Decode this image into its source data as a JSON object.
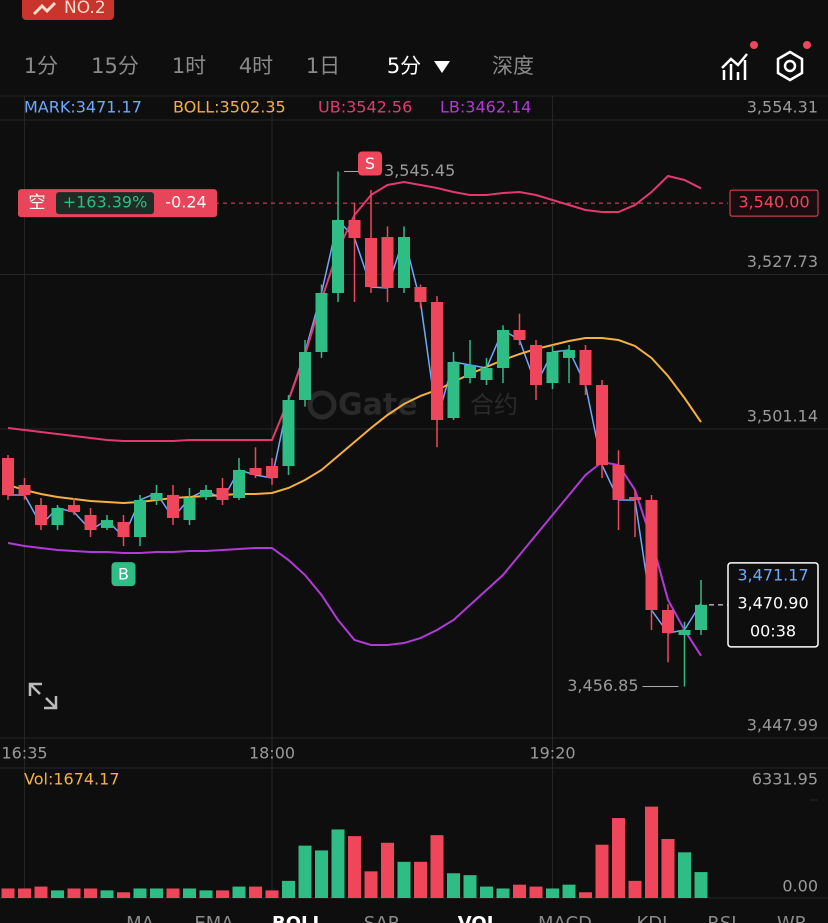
{
  "header": {
    "badge": "NO.2",
    "tabs": [
      "1分",
      "15分",
      "1时",
      "4时",
      "1日",
      "5分",
      "深度"
    ]
  },
  "watermark": [
    "Gate",
    "合约"
  ],
  "bottom_tabs": [
    "MA",
    "EMA",
    "BOLL",
    "SAR",
    "VOL",
    "MACD",
    "KDJ",
    "RSI",
    "WR"
  ],
  "chart_data": {
    "type": "candlestick",
    "categories": [
      null,
      "16:35",
      null,
      null,
      null,
      null,
      null,
      null,
      null,
      null,
      null,
      null,
      null,
      null,
      null,
      null,
      "18:00",
      null,
      null,
      null,
      null,
      null,
      null,
      null,
      null,
      null,
      null,
      null,
      null,
      null,
      null,
      null,
      null,
      "19:20",
      null,
      null,
      null,
      null,
      null,
      null,
      null,
      null,
      null
    ],
    "ohlc": [
      [
        3496.16,
        3496.68,
        3488.94,
        3489.8
      ],
      [
        3491.52,
        3492.72,
        3488.94,
        3489.8
      ],
      [
        3488.08,
        3489.28,
        3483.77,
        3484.63
      ],
      [
        3484.63,
        3488.08,
        3483.77,
        3487.56
      ],
      [
        3488.08,
        3489.28,
        3486.36,
        3486.87
      ],
      [
        3486.36,
        3487.56,
        3482.57,
        3483.77
      ],
      [
        3484.12,
        3486.36,
        3483.77,
        3485.49
      ],
      [
        3485.15,
        3486.36,
        3481.0,
        3482.57
      ],
      [
        3482.57,
        3489.8,
        3481.0,
        3488.94
      ],
      [
        3488.94,
        3491.52,
        3488.08,
        3490.14
      ],
      [
        3489.8,
        3491.52,
        3484.63,
        3485.84
      ],
      [
        3485.49,
        3491.0,
        3484.63,
        3489.28
      ],
      [
        3489.45,
        3491.52,
        3488.94,
        3490.66
      ],
      [
        3491.0,
        3492.72,
        3488.08,
        3488.94
      ],
      [
        3489.28,
        3496.16,
        3488.94,
        3494.1
      ],
      [
        3494.44,
        3498.0,
        3492.72,
        3493.24
      ],
      [
        3494.78,
        3496.16,
        3491.52,
        3492.72
      ],
      [
        3494.78,
        3507.0,
        3493.24,
        3506.14
      ],
      [
        3506.14,
        3516.46,
        3505.0,
        3514.4
      ],
      [
        3514.4,
        3526.0,
        3513.37,
        3524.55
      ],
      [
        3524.55,
        3545.45,
        3523.0,
        3537.11
      ],
      [
        3537.11,
        3540.0,
        3523.0,
        3534.01
      ],
      [
        3534.01,
        3542.27,
        3524.55,
        3525.58
      ],
      [
        3534.18,
        3536.0,
        3523.0,
        3525.41
      ],
      [
        3525.41,
        3536.0,
        3524.55,
        3534.18
      ],
      [
        3525.58,
        3526.0,
        3522.0,
        3523.0
      ],
      [
        3523.0,
        3524.0,
        3498.0,
        3502.7
      ],
      [
        3503.04,
        3514.4,
        3502.7,
        3512.68
      ],
      [
        3509.92,
        3516.46,
        3509.0,
        3512.16
      ],
      [
        3509.58,
        3513.37,
        3508.72,
        3511.64
      ],
      [
        3511.64,
        3519.0,
        3509.06,
        3518.18
      ],
      [
        3518.18,
        3521.0,
        3515.6,
        3516.46
      ],
      [
        3515.6,
        3516.46,
        3506.14,
        3508.72
      ],
      [
        3509.06,
        3515.6,
        3508.0,
        3514.4
      ],
      [
        3513.37,
        3515.6,
        3509.06,
        3514.74
      ],
      [
        3514.74,
        3515.6,
        3507.0,
        3508.72
      ],
      [
        3508.72,
        3509.58,
        3492.72,
        3494.96
      ],
      [
        3494.96,
        3497.5,
        3483.77,
        3488.94
      ],
      [
        3489.45,
        3490.66,
        3482.57,
        3488.94
      ],
      [
        3488.94,
        3489.8,
        3466.57,
        3470.01
      ],
      [
        3470.01,
        3471.0,
        3461.0,
        3466.05
      ],
      [
        3465.71,
        3468.0,
        3456.85,
        3466.57
      ],
      [
        3466.57,
        3475.17,
        3465.71,
        3470.9
      ]
    ],
    "up_color": "#2ebd85",
    "down_color": "#f0465c",
    "series": [
      {
        "name": "MARK:3471.17",
        "color": "#6fa8ff",
        "values": [
          3489.8,
          3489.8,
          3484.63,
          3487.56,
          3486.87,
          3483.77,
          3485.49,
          3482.57,
          3488.94,
          3490.14,
          3485.84,
          3489.28,
          3490.66,
          3488.94,
          3494.1,
          3493.24,
          3492.72,
          3506.14,
          3514.4,
          3524.55,
          3537.11,
          3534.01,
          3525.58,
          3525.41,
          3534.18,
          3523.0,
          3502.7,
          3512.68,
          3512.16,
          3511.64,
          3518.18,
          3516.46,
          3508.72,
          3514.4,
          3514.74,
          3508.72,
          3494.96,
          3488.94,
          3488.94,
          3470.01,
          3466.05,
          3466.57,
          3471.17
        ]
      },
      {
        "name": "BOLL:3502.35",
        "color": "#f5b041",
        "values": [
          3491.52,
          3490.66,
          3489.97,
          3489.45,
          3489.11,
          3488.76,
          3488.59,
          3488.42,
          3488.59,
          3488.94,
          3489.28,
          3489.45,
          3489.62,
          3489.8,
          3489.97,
          3489.97,
          3490.14,
          3491.0,
          3492.38,
          3494.1,
          3496.51,
          3498.91,
          3501.32,
          3503.56,
          3505.45,
          3506.83,
          3507.86,
          3509.24,
          3510.61,
          3511.82,
          3513.02,
          3514.05,
          3514.91,
          3515.6,
          3516.29,
          3516.81,
          3516.81,
          3516.46,
          3515.43,
          3513.37,
          3510.27,
          3506.48,
          3502.35
        ]
      },
      {
        "name": "UB:3542.56",
        "color": "#e2396f",
        "values": [
          3501.32,
          3500.98,
          3500.63,
          3500.29,
          3499.95,
          3499.6,
          3499.26,
          3499.09,
          3499.09,
          3499.09,
          3499.09,
          3499.26,
          3499.26,
          3499.26,
          3499.26,
          3499.26,
          3499.26,
          3506.14,
          3513.88,
          3523.34,
          3531.95,
          3537.97,
          3541.41,
          3543.13,
          3543.65,
          3543.13,
          3542.61,
          3541.92,
          3541.41,
          3541.41,
          3541.75,
          3541.92,
          3541.41,
          3540.55,
          3539.69,
          3538.83,
          3538.48,
          3538.48,
          3539.69,
          3541.92,
          3544.68,
          3543.99,
          3542.56
        ]
      },
      {
        "name": "LB:3462.14",
        "color": "#b23ad8",
        "values": [
          3481.54,
          3481.02,
          3480.68,
          3480.33,
          3480.16,
          3479.99,
          3479.99,
          3479.82,
          3479.82,
          3479.99,
          3479.99,
          3480.16,
          3480.16,
          3480.33,
          3480.51,
          3480.68,
          3480.68,
          3478.61,
          3476.03,
          3472.59,
          3468.29,
          3464.85,
          3463.99,
          3463.99,
          3464.33,
          3465.19,
          3466.57,
          3468.29,
          3470.87,
          3473.45,
          3476.03,
          3479.47,
          3482.91,
          3486.36,
          3489.8,
          3493.24,
          3495.47,
          3494.96,
          3490.66,
          3482.05,
          3471.73,
          3466.57,
          3462.14
        ]
      }
    ],
    "ylim": [
      3447.99,
      3554.31
    ],
    "yticks": [
      {
        "value": 3554.31,
        "label": "3,554.31"
      },
      {
        "value": 3527.73,
        "label": "3,527.73"
      },
      {
        "value": 3501.14,
        "label": "3,501.14"
      },
      {
        "value": 3447.99,
        "label": "3,447.99"
      }
    ],
    "grid": true,
    "position": {
      "side": "空",
      "pnl": "+163.39%",
      "amount": "-0.24",
      "price": {
        "value": 3540,
        "label": "3,540.00"
      }
    },
    "high_label": {
      "value": 3545.45,
      "label": "3,545.45"
    },
    "low_label": {
      "value": 3456.85,
      "label": "3,456.85"
    },
    "signals": [
      {
        "label": "S",
        "index": 20,
        "color": "#f0465c"
      },
      {
        "label": "B",
        "index": 7,
        "color": "#2ebd85"
      }
    ],
    "current": {
      "mark": "3,471.17",
      "last": "3,470.90",
      "countdown": "00:38"
    }
  },
  "volume": {
    "type": "bar",
    "title": "Vol:1674.17",
    "ylim": [
      0,
      6331.95
    ],
    "yticks": [
      6331.95,
      {
        "value": 0,
        "label": "0.00"
      }
    ],
    "values": [
      615,
      615,
      738,
      492,
      615,
      615,
      492,
      369,
      615,
      615,
      615,
      615,
      492,
      492,
      738,
      738,
      492,
      1107,
      3383,
      3075,
      4428,
      3998,
      1722,
      3567,
      2337,
      2337,
      4059,
      1599,
      1476,
      738,
      615,
      861,
      738,
      615,
      861,
      369,
      3444,
      5166,
      1107,
      5904,
      3813,
      2952,
      1674.17
    ]
  }
}
